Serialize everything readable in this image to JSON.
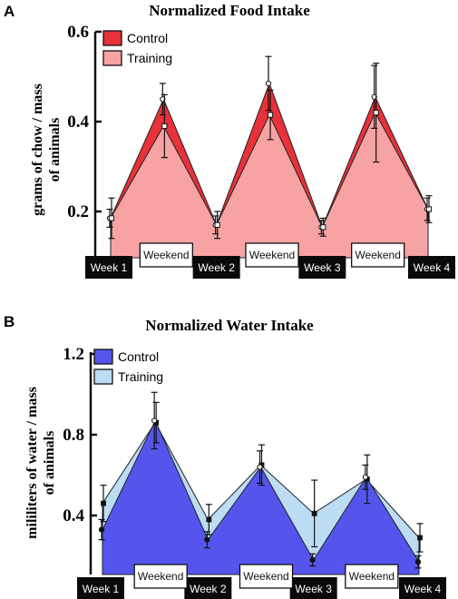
{
  "chart_data": [
    {
      "panel": "A",
      "type": "area",
      "title": "Normalized Food Intake",
      "ylabel": "grams of chow / mass of animals",
      "ylabel_lines": [
        "grams of chow / mass",
        "of animals"
      ],
      "ylim": [
        0.1,
        0.6
      ],
      "yticks": [
        0.2,
        0.4,
        0.6
      ],
      "ytick_labels": [
        "0.2",
        "0.4",
        "0.6"
      ],
      "x": [
        0,
        1,
        2,
        3,
        4,
        5,
        6
      ],
      "week_labels": [
        "Week 1",
        "Week 2",
        "Week 3",
        "Week 4"
      ],
      "weekend_label": "Weekend",
      "legend_position": "top-left",
      "series": [
        {
          "name": "Control",
          "color": "#e8313a",
          "values": [
            0.185,
            0.45,
            0.17,
            0.485,
            0.165,
            0.455,
            0.205
          ],
          "err": [
            0.02,
            0.035,
            0.02,
            0.06,
            0.015,
            0.07,
            0.025
          ]
        },
        {
          "name": "Training",
          "color": "#f8a3a3",
          "values": [
            0.185,
            0.39,
            0.17,
            0.415,
            0.165,
            0.42,
            0.205
          ],
          "err": [
            0.045,
            0.07,
            0.03,
            0.055,
            0.02,
            0.11,
            0.03
          ]
        }
      ]
    },
    {
      "panel": "B",
      "type": "area",
      "title": "Normalized Water Intake",
      "ylabel": "mililiters of water / mass of animals",
      "ylabel_lines": [
        "mililiters of water / mass",
        "of animals"
      ],
      "ylim": [
        0.2,
        1.2
      ],
      "yticks": [
        0.4,
        0.8,
        1.2
      ],
      "ytick_labels": [
        "0.4",
        "0.8",
        "1.2"
      ],
      "x": [
        0,
        1,
        2,
        3,
        4,
        5,
        6
      ],
      "week_labels": [
        "Week 1",
        "Week 2",
        "Week 3",
        "Week 4"
      ],
      "weekend_label": "Weekend",
      "legend_position": "top-left",
      "series": [
        {
          "name": "Training",
          "color": "#bcdcf3",
          "values": [
            0.46,
            0.86,
            0.38,
            0.65,
            0.41,
            0.58,
            0.29
          ],
          "err": [
            0.09,
            0.1,
            0.075,
            0.1,
            0.165,
            0.12,
            0.07
          ]
        },
        {
          "name": "Control",
          "color": "#5555ee",
          "values": [
            0.33,
            0.87,
            0.28,
            0.64,
            0.18,
            0.59,
            0.17
          ],
          "err": [
            0.05,
            0.14,
            0.04,
            0.08,
            0.03,
            0.06,
            0.03
          ]
        }
      ]
    }
  ]
}
